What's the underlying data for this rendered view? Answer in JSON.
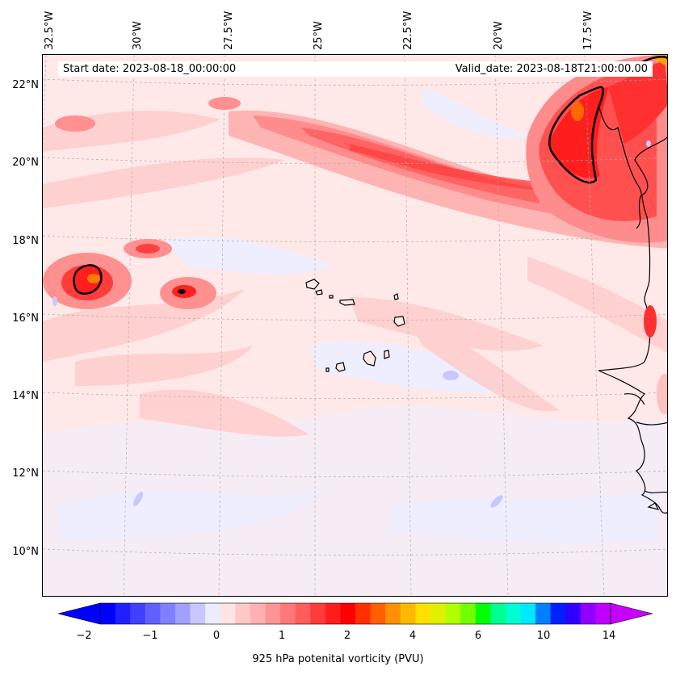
{
  "map": {
    "longitude_labels": [
      "32.5°W",
      "30°W",
      "27.5°W",
      "25°W",
      "22.5°W",
      "20°W",
      "17.5°W"
    ],
    "latitude_labels": [
      "22°N",
      "20°N",
      "18°N",
      "16°N",
      "14°N",
      "12°N",
      "10°N"
    ],
    "start_date": "Start date: 2023-08-18_00:00:00",
    "valid_date": "Valid_date: 2023-08-18T21:00:00.00",
    "contour_level_pvu": 2,
    "features": [
      "Cape Verde Islands",
      "West African coastline (Mauritania / Senegal)"
    ]
  },
  "colorbar": {
    "label": "925 hPa potenital vorticity (PVU)",
    "ticks": [
      "−2",
      "−1",
      "0",
      "1",
      "2",
      "4",
      "6",
      "10",
      "14"
    ],
    "colors": [
      "#0000ff",
      "#2020ff",
      "#4040ff",
      "#6060ff",
      "#8080ff",
      "#a0a0ff",
      "#c8c8ff",
      "#ececff",
      "#ffe4e4",
      "#ffc8c8",
      "#ffb0b0",
      "#ff9494",
      "#ff7878",
      "#ff5c5c",
      "#ff3c3c",
      "#ff1e1e",
      "#ff0000",
      "#ff3000",
      "#ff6000",
      "#ff9000",
      "#ffb800",
      "#ffe000",
      "#e0f000",
      "#b0ff00",
      "#70ff00",
      "#00ff00",
      "#00ff90",
      "#00ffd0",
      "#00e8ff",
      "#0080ff",
      "#0020ff",
      "#3000ff",
      "#9000ff",
      "#c000ff"
    ],
    "under_color": "#0000ff",
    "over_color": "#c800ff"
  }
}
